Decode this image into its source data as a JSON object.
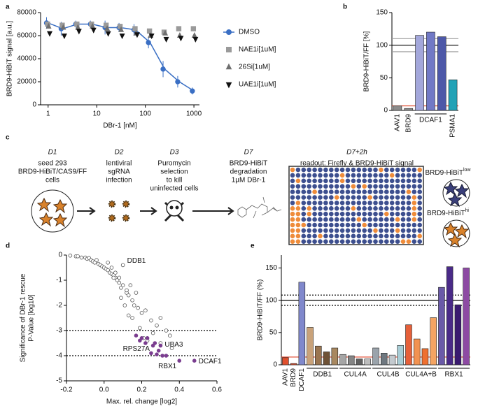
{
  "chart_data": [
    {
      "panel": "a",
      "type": "line",
      "xscale": "log",
      "xlabel": "DBr-1 [nM]",
      "ylabel": "BRD9-HiBiT signal [a.u.]",
      "xlim": [
        0.7,
        1300
      ],
      "xticks": [
        1,
        10,
        100,
        1000
      ],
      "ylim": [
        0,
        80000
      ],
      "yticks": [
        0,
        20000,
        40000,
        60000,
        80000
      ],
      "legend": "right",
      "x": [
        1,
        2,
        4,
        8,
        16,
        31,
        63,
        125,
        250,
        500,
        1000
      ],
      "series": [
        {
          "name": "DMSO",
          "color": "#3a6fc4",
          "marker": "circle",
          "line": true,
          "values": [
            71000,
            66000,
            70000,
            70000,
            67000,
            67000,
            65000,
            54000,
            31000,
            20000,
            12000
          ],
          "errors": [
            5000,
            6000,
            3000,
            3000,
            6000,
            4000,
            5000,
            5000,
            7000,
            5000,
            3000
          ]
        },
        {
          "name": "NAE1i[1uM]",
          "color": "#9a9a9a",
          "marker": "square",
          "values": [
            70000,
            69000,
            70000,
            70000,
            69000,
            68000,
            66000,
            64000,
            63000,
            66000,
            66000
          ]
        },
        {
          "name": "26Si[1uM]",
          "color": "#6f6f6f",
          "marker": "triangle",
          "values": [
            68000,
            67000,
            67000,
            68000,
            66000,
            65000,
            62000,
            60000,
            62000,
            60000,
            60000
          ]
        },
        {
          "name": "UAE1i[1uM]",
          "color": "#111111",
          "marker": "triangle-down",
          "values": [
            62000,
            60000,
            64000,
            65000,
            62000,
            60000,
            61000,
            60000,
            57000,
            58000,
            57000
          ]
        }
      ]
    },
    {
      "panel": "b",
      "type": "bar",
      "ylabel": "BRD9-HiBiT/FF [%]",
      "ylim": [
        0,
        150
      ],
      "yticks": [
        0,
        50,
        100,
        150
      ],
      "categories": [
        "AAV1",
        "BRD9",
        "DCAF1",
        "DCAF1",
        "DCAF1",
        "PSMA1"
      ],
      "values": [
        7,
        3,
        115,
        120,
        113,
        47
      ],
      "colors": [
        "#8c8c8c",
        "#8c8c8c",
        "#a3a7db",
        "#7179c6",
        "#4d58a8",
        "#22a2b6"
      ],
      "hlines": [
        {
          "value": 90,
          "color": "#999999",
          "dash": false
        },
        {
          "value": 110,
          "color": "#999999",
          "dash": false
        },
        {
          "value": 100,
          "color": "#000000",
          "dash": false
        },
        {
          "value": 7,
          "color": "#e0452a",
          "dash": false
        }
      ]
    },
    {
      "panel": "d",
      "type": "scatter",
      "xlabel": "Max. rel. change [log2]",
      "ylabel": [
        "Significance of DBr-1 rescue",
        "P-Value [log10]"
      ],
      "xlim": [
        -0.2,
        0.6
      ],
      "xticks": [
        -0.2,
        {
          "value": 0,
          "label": "0.0"
        },
        0.2,
        0.4,
        0.6
      ],
      "ylim": [
        -5,
        0
      ],
      "yticks": [
        0,
        -1,
        -2,
        -3,
        -4,
        -5
      ],
      "hlines": [
        {
          "value": -3,
          "color": "#000000",
          "dash": true
        },
        {
          "value": -4,
          "color": "#000000",
          "dash": true
        }
      ],
      "series": [
        {
          "color": "#555555",
          "filled": false,
          "x": [
            -0.18,
            -0.15,
            -0.14,
            -0.12,
            -0.1,
            -0.09,
            -0.08,
            -0.07,
            -0.06,
            -0.05,
            -0.04,
            -0.03,
            -0.02,
            -0.01,
            0,
            0.01,
            0.02,
            0.03,
            0.04,
            0.05,
            0.06,
            0.07,
            0.08,
            0.09,
            0.1,
            0.12,
            0.13,
            0.15,
            0.16,
            0.18,
            0.2,
            0.22,
            0.25,
            0.28,
            0.3,
            0.35,
            0.02,
            0.04,
            0.06,
            0.08,
            0.1,
            0.12,
            0.14,
            0.05,
            0.09,
            0.11,
            0.13,
            0.15,
            0.17,
            0.19,
            0.21,
            0.23,
            0.26,
            0.3,
            0.33,
            0.36
          ],
          "values": [
            -0.02,
            -0.05,
            -0.05,
            -0.1,
            -0.1,
            -0.15,
            -0.12,
            -0.2,
            -0.25,
            -0.3,
            -0.2,
            -0.35,
            -0.4,
            -0.45,
            -0.5,
            -0.55,
            -0.6,
            -0.7,
            -0.75,
            -0.8,
            -0.9,
            -1,
            -1.1,
            -1.3,
            -0.4,
            -1.5,
            -1.6,
            -1.8,
            -2,
            -2.1,
            -2.3,
            -2.2,
            -2.6,
            -2.8,
            -2.5,
            -3.2,
            -0.3,
            -0.5,
            -0.7,
            -0.9,
            -1.2,
            -1.4,
            -1.2,
            -0.9,
            -1.7,
            -2,
            -2.4,
            -2.5,
            -1.5,
            -2.9,
            -3.3,
            -3.4,
            -3.1,
            -3.5,
            -3,
            -3.7
          ]
        },
        {
          "color": "#7a3d8f",
          "filled": true,
          "x": [
            0.17,
            0.19,
            0.2,
            0.22,
            0.23,
            0.25,
            0.26,
            0.27,
            0.28,
            0.29,
            0.3,
            0.31,
            0.33,
            0.4,
            0.48
          ],
          "values": [
            -3.2,
            -3.4,
            -3.3,
            -3.5,
            -3.3,
            -3.9,
            -3.6,
            -3.5,
            -3.95,
            -3.8,
            -3.6,
            -4,
            -4,
            -4.2,
            -4.2
          ]
        }
      ],
      "annotations": [
        {
          "text": "DDB1",
          "x": 0.1,
          "y": -0.4
        },
        {
          "text": "UBA3",
          "x": 0.3,
          "y": -3.6
        },
        {
          "text": "RPS27A",
          "x": 0.25,
          "y": -3.9
        },
        {
          "text": "RBX1",
          "x": 0.4,
          "y": -4.2
        },
        {
          "text": "DCAF1",
          "x": 0.48,
          "y": -4.2
        }
      ]
    },
    {
      "panel": "e",
      "type": "bar",
      "ylabel": "BRD9-HiBiT/FF (%)",
      "ylim": [
        0,
        170
      ],
      "yticks": [
        0,
        50,
        100,
        150
      ],
      "categories": [
        "AAV1",
        "BRD9",
        "DCAF1",
        "DDB1",
        "DDB1",
        "DDB1",
        "DDB1",
        "CUL4A",
        "CUL4A",
        "CUL4A",
        "CUL4A",
        "CUL4B",
        "CUL4B",
        "CUL4B",
        "CUL4B",
        "CUL4A+B",
        "CUL4A+B",
        "CUL4A+B",
        "CUL4A+B",
        "RBX1",
        "RBX1",
        "RBX1",
        "RBX1"
      ],
      "values": [
        11,
        2,
        128,
        58,
        29,
        20,
        26,
        16,
        14,
        9,
        9,
        26,
        18,
        15,
        30,
        62,
        40,
        25,
        73,
        120,
        152,
        93,
        150
      ],
      "colors": [
        "#e0502e",
        "#e0502e",
        "#8088cc",
        "#c9a27a",
        "#9a7550",
        "#6e5236",
        "#a88860",
        "#a6a6a6",
        "#858585",
        "#606060",
        "#bdbdbd",
        "#9aa3ab",
        "#6f7880",
        "#c4cacf",
        "#a9cdd6",
        "#e6603a",
        "#f29251",
        "#ee7030",
        "#f4a462",
        "#6a5aa8",
        "#4a2a88",
        "#3a1a70",
        "#8d4aa3"
      ],
      "hlines": [
        {
          "value": 92,
          "color": "#000000",
          "dash": true
        },
        {
          "value": 108,
          "color": "#000000",
          "dash": true
        },
        {
          "value": 100,
          "color": "#000000",
          "dash": false
        },
        {
          "value": 12,
          "color": "#e0452a",
          "dash": false
        }
      ]
    }
  ],
  "workflow": {
    "panel": "c",
    "steps": [
      {
        "day": "D1",
        "lines": [
          "seed 293",
          "BRD9-HiBiT/CAS9/FF",
          "cells"
        ]
      },
      {
        "day": "D2",
        "lines": [
          "lentiviral",
          "sgRNA",
          "infection"
        ]
      },
      {
        "day": "D3",
        "lines": [
          "Puromycin",
          "selection",
          "to kill",
          "uninfected cells"
        ]
      },
      {
        "day": "D7",
        "lines": [
          "BRD9-HiBiT",
          "degradation",
          "1µM DBr-1"
        ]
      },
      {
        "day": "D7+2h",
        "lines": [
          "readout: Firefly & BRD9-HiBiT signal"
        ]
      }
    ],
    "legend": [
      {
        "text": "BRD9-HiBiT",
        "sup": "low"
      },
      {
        "text": "BRD9-HiBiT",
        "sup": "hi"
      }
    ]
  }
}
